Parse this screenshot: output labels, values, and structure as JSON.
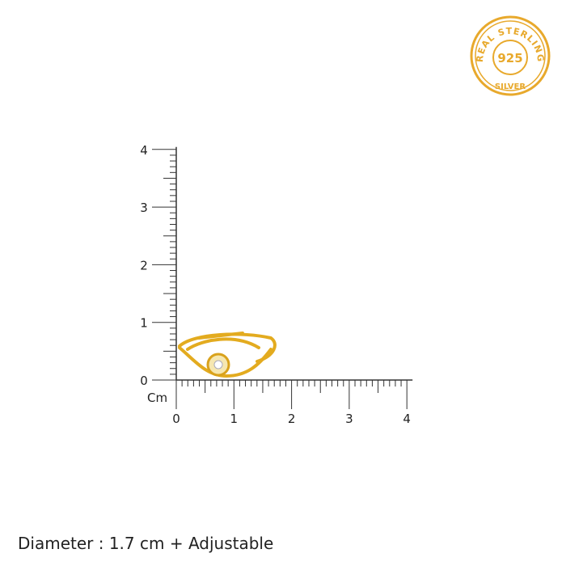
{
  "badge": {
    "top_text": "REAL STERLING",
    "center_text": "925",
    "bottom_text": "SILVER",
    "color": "#e8a92c"
  },
  "ruler": {
    "unit_label": "Cm",
    "x_ticks": [
      "0",
      "1",
      "2",
      "3",
      "4"
    ],
    "y_ticks": [
      "0",
      "1",
      "2",
      "3",
      "4"
    ],
    "max_cm": 4
  },
  "product": {
    "name": "ring-image",
    "metal_color": "#e8b020"
  },
  "caption": "Diameter : 1.7 cm + Adjustable"
}
